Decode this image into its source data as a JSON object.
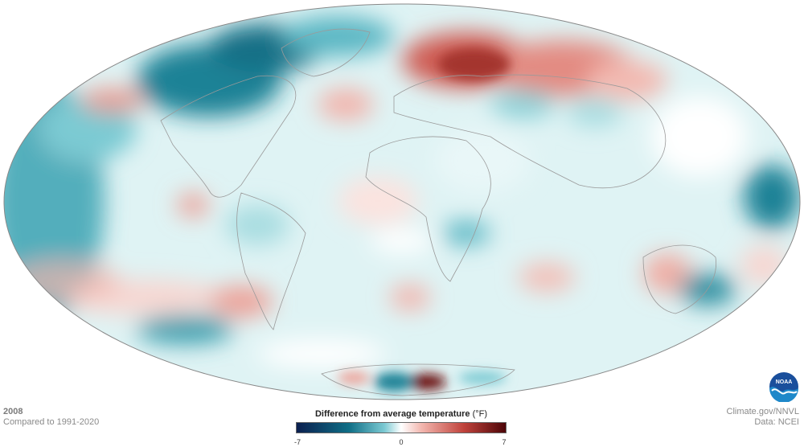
{
  "footer": {
    "year": "2008",
    "comparison": "Compared to 1991-2020",
    "credit": "Climate.gov/NNVL",
    "data_source": "Data: NCEI"
  },
  "legend": {
    "title": "Difference from average temperature",
    "unit": "(°F)",
    "min_label": "-7",
    "mid_label": "0",
    "max_label": "7",
    "min": -7,
    "max": 7,
    "colors": [
      "#0b1f4f",
      "#0f6e86",
      "#7ccad3",
      "#ffffff",
      "#f2b5ad",
      "#c0423b",
      "#4d0508"
    ]
  },
  "logo": {
    "text": "NOAA",
    "icon": "noaa-logo-icon"
  },
  "map": {
    "projection": "Mollweide",
    "ocean_base": "#d9f1f3",
    "outline_color": "#888888"
  }
}
